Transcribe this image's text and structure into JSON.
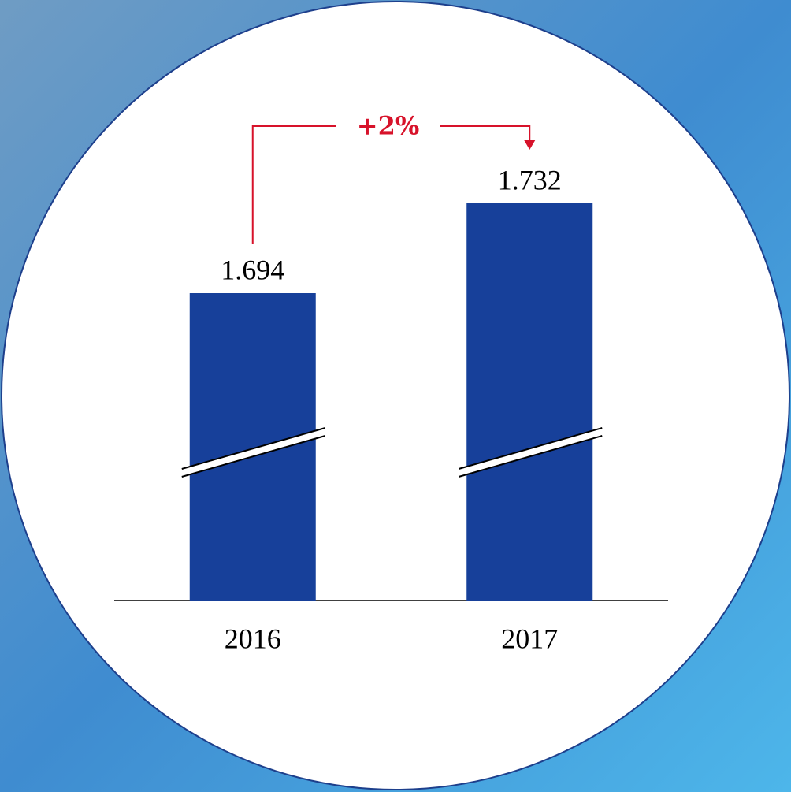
{
  "chart_data": {
    "type": "bar",
    "annotation": "+2%",
    "categories": [
      "2016",
      "2017"
    ],
    "values": [
      1.694,
      1.732
    ],
    "color": "#17409a",
    "ylim": [
      1.564,
      1.8
    ],
    "axis_break": true,
    "annotation_color": "#d7122a"
  }
}
